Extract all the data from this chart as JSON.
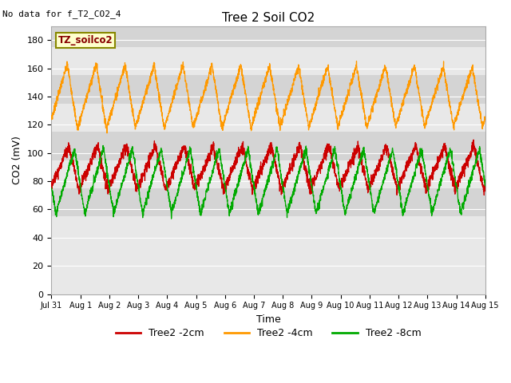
{
  "title": "Tree 2 Soil CO2",
  "no_data_text": "No data for f_T2_CO2_4",
  "tz_label": "TZ_soilco2",
  "xlabel": "Time",
  "ylabel": "CO2 (mV)",
  "ylim": [
    0,
    190
  ],
  "yticks": [
    0,
    20,
    40,
    60,
    80,
    100,
    120,
    140,
    160,
    180
  ],
  "xtick_labels": [
    "Jul 31",
    "Aug 1",
    "Aug 2",
    "Aug 3",
    "Aug 4",
    "Aug 5",
    "Aug 6",
    "Aug 7",
    "Aug 8",
    "Aug 9",
    "Aug 10",
    "Aug 11",
    "Aug 12",
    "Aug 13",
    "Aug 14",
    "Aug 15"
  ],
  "line_red_color": "#cc0000",
  "line_orange_color": "#ff9900",
  "line_green_color": "#00aa00",
  "legend_labels": [
    "Tree2 -2cm",
    "Tree2 -4cm",
    "Tree2 -8cm"
  ],
  "bg_color": "#ffffff",
  "plot_bg_color": "#e8e8e8",
  "band_color": "#d4d4d4",
  "band_ranges": [
    [
      55,
      75
    ],
    [
      95,
      115
    ],
    [
      135,
      155
    ],
    [
      175,
      195
    ]
  ],
  "n_points": 3000,
  "red_mean": 88,
  "red_amp": 14,
  "orange_mean": 140,
  "orange_amp": 24,
  "green_mean": 80,
  "green_amp": 22
}
